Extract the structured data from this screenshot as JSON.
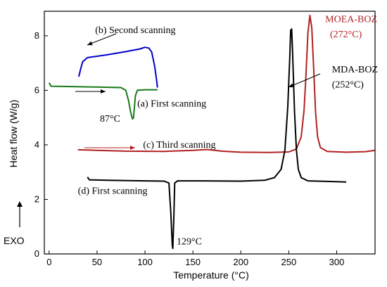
{
  "chart_data": {
    "type": "line",
    "xlabel": "Temperature (°C)",
    "ylabel": "Heat flow (W/g)",
    "xlim": [
      -5,
      340
    ],
    "ylim": [
      0,
      8.9
    ],
    "xticks": [
      0,
      50,
      100,
      150,
      200,
      250,
      300
    ],
    "yticks": [
      0,
      2,
      4,
      6,
      8
    ],
    "grid": false,
    "exo_label": "EXO",
    "series": [
      {
        "name": "MOEA-BOZ",
        "color": "#b22222",
        "points": [
          [
            30,
            3.82
          ],
          [
            50,
            3.8
          ],
          [
            80,
            3.77
          ],
          [
            120,
            3.76
          ],
          [
            150,
            3.8
          ],
          [
            165,
            3.83
          ],
          [
            180,
            3.77
          ],
          [
            200,
            3.73
          ],
          [
            230,
            3.72
          ],
          [
            250,
            3.74
          ],
          [
            258,
            3.85
          ],
          [
            263,
            4.3
          ],
          [
            266,
            5.3
          ],
          [
            268,
            6.6
          ],
          [
            270,
            8.1
          ],
          [
            272,
            8.75
          ],
          [
            274,
            8.3
          ],
          [
            276,
            6.8
          ],
          [
            278,
            5.2
          ],
          [
            280,
            4.3
          ],
          [
            283,
            3.9
          ],
          [
            290,
            3.76
          ],
          [
            310,
            3.73
          ],
          [
            330,
            3.75
          ],
          [
            340,
            3.8
          ]
        ]
      },
      {
        "name": "MDA-BOZ",
        "color": "#000000",
        "points": [
          [
            40,
            2.82
          ],
          [
            42,
            2.72
          ],
          [
            60,
            2.7
          ],
          [
            100,
            2.68
          ],
          [
            120,
            2.67
          ],
          [
            125,
            2.6
          ],
          [
            127,
            1.5
          ],
          [
            128.5,
            0.3
          ],
          [
            129,
            0.2
          ],
          [
            130,
            1.2
          ],
          [
            131,
            2.6
          ],
          [
            134,
            2.68
          ],
          [
            160,
            2.68
          ],
          [
            200,
            2.67
          ],
          [
            225,
            2.7
          ],
          [
            235,
            2.8
          ],
          [
            242,
            3.1
          ],
          [
            246,
            3.8
          ],
          [
            249,
            5.4
          ],
          [
            251,
            7.2
          ],
          [
            252,
            8.2
          ],
          [
            253,
            8.25
          ],
          [
            254,
            7.4
          ],
          [
            256,
            5.2
          ],
          [
            258,
            3.8
          ],
          [
            260,
            3.1
          ],
          [
            263,
            2.8
          ],
          [
            270,
            2.68
          ],
          [
            290,
            2.66
          ],
          [
            310,
            2.64
          ]
        ]
      },
      {
        "name": "(b) Second scanning",
        "color": "#0000cc",
        "points": [
          [
            31,
            6.5
          ],
          [
            33,
            6.8
          ],
          [
            35,
            7.05
          ],
          [
            40,
            7.2
          ],
          [
            60,
            7.3
          ],
          [
            80,
            7.42
          ],
          [
            95,
            7.52
          ],
          [
            100,
            7.58
          ],
          [
            104,
            7.55
          ],
          [
            107,
            7.4
          ],
          [
            110,
            6.9
          ],
          [
            112,
            6.4
          ],
          [
            113,
            6.1
          ]
        ]
      },
      {
        "name": "(a) First scanning",
        "color": "#1a7a1a",
        "points": [
          [
            0,
            6.28
          ],
          [
            2,
            6.15
          ],
          [
            20,
            6.14
          ],
          [
            50,
            6.12
          ],
          [
            75,
            6.1
          ],
          [
            80,
            6.0
          ],
          [
            83,
            5.6
          ],
          [
            85,
            5.2
          ],
          [
            87,
            4.95
          ],
          [
            88,
            5.0
          ],
          [
            89,
            5.4
          ],
          [
            90,
            5.8
          ],
          [
            92,
            6.0
          ],
          [
            100,
            6.02
          ],
          [
            113,
            6.02
          ]
        ]
      }
    ],
    "annotations": [
      {
        "text": "(b) Second scanning",
        "x": 48,
        "y": 8.1,
        "color": "#000000"
      },
      {
        "text": "(a) First scanning",
        "x": 92,
        "y": 5.4,
        "color": "#000000"
      },
      {
        "text": "87°C",
        "x": 53,
        "y": 4.85,
        "color": "#000000"
      },
      {
        "text": "(c) Third scanning",
        "x": 98,
        "y": 3.9,
        "color": "#000000"
      },
      {
        "text": "(d) First scanning",
        "x": 30,
        "y": 2.2,
        "color": "#000000"
      },
      {
        "text": "129°C",
        "x": 133,
        "y": 0.35,
        "color": "#000000"
      },
      {
        "text": "MOEA-BOZ",
        "x": 288,
        "y": 8.5,
        "color": "#b22222"
      },
      {
        "text": "(272°C)",
        "x": 293,
        "y": 7.95,
        "color": "#b22222"
      },
      {
        "text": "MDA-BOZ",
        "x": 295,
        "y": 6.65,
        "color": "#000000"
      },
      {
        "text": "(252°C)",
        "x": 295,
        "y": 6.1,
        "color": "#000000"
      }
    ]
  }
}
